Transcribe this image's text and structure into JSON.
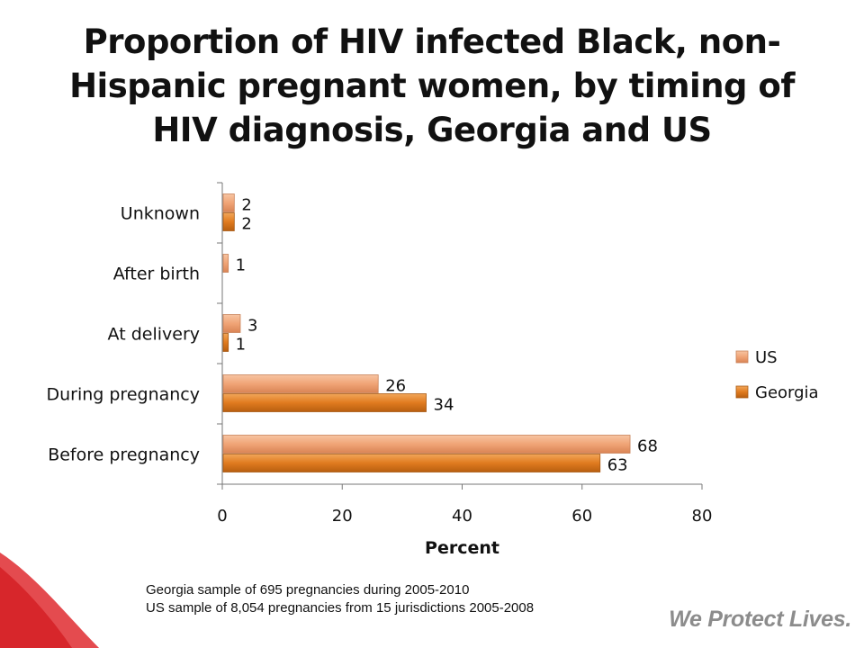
{
  "slide": {
    "title": "Proportion of HIV infected Black, non-Hispanic pregnant women, by timing of HIV diagnosis, Georgia and US",
    "footnotes": [
      "Georgia sample of 695 pregnancies during 2005-2010",
      "US sample of 8,054 pregnancies from 15 jurisdictions 2005-2008"
    ],
    "tagline": "We Protect Lives."
  },
  "colors": {
    "us_fill": "#f0a476",
    "georgia_fill": "#e07b1f",
    "swoosh": "#d7262b"
  },
  "chart_data": {
    "type": "bar",
    "orientation": "horizontal",
    "categories": [
      "Before pregnancy",
      "During pregnancy",
      "At delivery",
      "After birth",
      "Unknown"
    ],
    "series": [
      {
        "name": "US",
        "values": [
          68,
          26,
          3,
          1,
          2
        ],
        "labels": [
          "68",
          "26",
          "3",
          "1",
          "2"
        ]
      },
      {
        "name": "Georgia",
        "values": [
          63,
          34,
          1,
          0,
          2
        ],
        "labels": [
          "63",
          "34",
          "1",
          "",
          "2"
        ]
      }
    ],
    "xlabel": "Percent",
    "ylabel": "",
    "xlim": [
      0,
      80
    ],
    "xticks": [
      0,
      20,
      40,
      60,
      80
    ],
    "grid": false,
    "legend": "right"
  }
}
